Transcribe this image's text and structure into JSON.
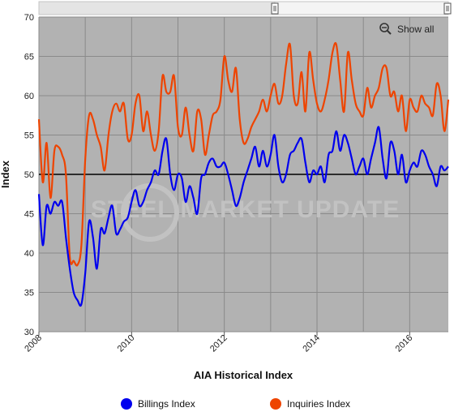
{
  "chart_data": {
    "type": "line",
    "title": "",
    "xlabel": "AIA Historical Index",
    "ylabel": "Index",
    "ylim": [
      30,
      70
    ],
    "y_ticks": [
      30,
      35,
      40,
      45,
      50,
      55,
      60,
      65,
      70
    ],
    "xlim": [
      "2008-01",
      "2016-11"
    ],
    "x_tick_labels": [
      "2008",
      "2010",
      "2012",
      "2014",
      "2016"
    ],
    "reference_line": 50,
    "grid": true,
    "legend_position": "bottom",
    "x": [
      "2008-01",
      "2008-02",
      "2008-03",
      "2008-04",
      "2008-05",
      "2008-06",
      "2008-07",
      "2008-08",
      "2008-09",
      "2008-10",
      "2008-11",
      "2008-12",
      "2009-01",
      "2009-02",
      "2009-03",
      "2009-04",
      "2009-05",
      "2009-06",
      "2009-07",
      "2009-08",
      "2009-09",
      "2009-10",
      "2009-11",
      "2009-12",
      "2010-01",
      "2010-02",
      "2010-03",
      "2010-04",
      "2010-05",
      "2010-06",
      "2010-07",
      "2010-08",
      "2010-09",
      "2010-10",
      "2010-11",
      "2010-12",
      "2011-01",
      "2011-02",
      "2011-03",
      "2011-04",
      "2011-05",
      "2011-06",
      "2011-07",
      "2011-08",
      "2011-09",
      "2011-10",
      "2011-11",
      "2011-12",
      "2012-01",
      "2012-02",
      "2012-03",
      "2012-04",
      "2012-05",
      "2012-06",
      "2012-07",
      "2012-08",
      "2012-09",
      "2012-10",
      "2012-11",
      "2012-12",
      "2013-01",
      "2013-02",
      "2013-03",
      "2013-04",
      "2013-05",
      "2013-06",
      "2013-07",
      "2013-08",
      "2013-09",
      "2013-10",
      "2013-11",
      "2013-12",
      "2014-01",
      "2014-02",
      "2014-03",
      "2014-04",
      "2014-05",
      "2014-06",
      "2014-07",
      "2014-08",
      "2014-09",
      "2014-10",
      "2014-11",
      "2014-12",
      "2015-01",
      "2015-02",
      "2015-03",
      "2015-04",
      "2015-05",
      "2015-06",
      "2015-07",
      "2015-08",
      "2015-09",
      "2015-10",
      "2015-11",
      "2015-12",
      "2016-01",
      "2016-02",
      "2016-03",
      "2016-04",
      "2016-05",
      "2016-06",
      "2016-07",
      "2016-08",
      "2016-09",
      "2016-10",
      "2016-11"
    ],
    "series": [
      {
        "name": "Billings Index",
        "color": "#0000ee",
        "values": [
          47.5,
          41.0,
          46.0,
          45.0,
          46.5,
          46.0,
          46.5,
          42.0,
          38.0,
          35.0,
          34.0,
          33.5,
          37.5,
          44.0,
          42.0,
          38.0,
          43.0,
          42.5,
          44.5,
          46.0,
          42.5,
          43.0,
          44.0,
          44.5,
          46.5,
          48.0,
          46.0,
          46.5,
          48.0,
          49.0,
          50.5,
          50.0,
          53.0,
          54.5,
          50.0,
          48.0,
          50.0,
          49.5,
          46.5,
          48.5,
          47.0,
          45.0,
          49.5,
          50.0,
          51.5,
          52.0,
          51.0,
          51.0,
          51.5,
          50.0,
          48.0,
          46.0,
          47.0,
          49.0,
          50.5,
          52.0,
          53.5,
          51.0,
          53.0,
          51.0,
          52.5,
          55.0,
          51.0,
          49.0,
          50.0,
          52.5,
          53.0,
          54.0,
          54.5,
          51.5,
          49.0,
          50.5,
          50.0,
          51.0,
          49.0,
          52.5,
          53.0,
          55.5,
          53.0,
          55.0,
          54.0,
          52.0,
          50.0,
          51.0,
          52.0,
          50.0,
          52.0,
          54.0,
          56.0,
          52.0,
          49.5,
          54.0,
          53.0,
          50.0,
          52.5,
          49.0,
          50.5,
          51.5,
          51.0,
          53.0,
          52.5,
          51.0,
          50.0,
          48.5,
          51.0,
          50.5,
          51.0
        ]
      },
      {
        "name": "Inquiries Index",
        "color": "#ee4400",
        "values": [
          57.0,
          49.0,
          54.0,
          47.0,
          53.0,
          53.5,
          52.5,
          50.0,
          39.5,
          39.0,
          38.5,
          41.0,
          52.0,
          57.5,
          57.0,
          55.0,
          53.5,
          50.5,
          55.0,
          58.0,
          59.0,
          58.0,
          59.0,
          54.5,
          55.0,
          59.0,
          60.0,
          55.5,
          58.0,
          55.0,
          53.0,
          55.5,
          62.5,
          60.5,
          60.5,
          62.5,
          56.0,
          55.0,
          58.5,
          55.0,
          53.0,
          58.0,
          57.0,
          52.5,
          55.0,
          57.5,
          58.0,
          59.5,
          65.0,
          62.0,
          60.5,
          63.5,
          57.0,
          54.0,
          54.5,
          56.0,
          57.0,
          58.0,
          59.5,
          58.0,
          60.0,
          61.5,
          59.0,
          60.0,
          64.0,
          66.5,
          60.0,
          59.0,
          63.0,
          58.0,
          65.5,
          62.0,
          59.0,
          58.0,
          59.5,
          62.0,
          65.5,
          66.5,
          62.0,
          58.0,
          65.5,
          62.0,
          59.0,
          58.0,
          57.5,
          61.0,
          58.5,
          60.0,
          61.0,
          63.5,
          63.5,
          60.0,
          60.5,
          58.0,
          60.0,
          55.5,
          59.5,
          58.5,
          58.0,
          60.0,
          59.0,
          58.5,
          57.5,
          61.5,
          60.0,
          55.5,
          59.5
        ]
      }
    ]
  },
  "legend": [
    {
      "label": "Billings Index",
      "color": "#0000ee"
    },
    {
      "label": "Inquiries Index",
      "color": "#ee4400"
    }
  ],
  "toolbar": {
    "show_all_label": "Show all"
  },
  "watermark": {
    "text": "STEEL MARKET UPDATE"
  }
}
